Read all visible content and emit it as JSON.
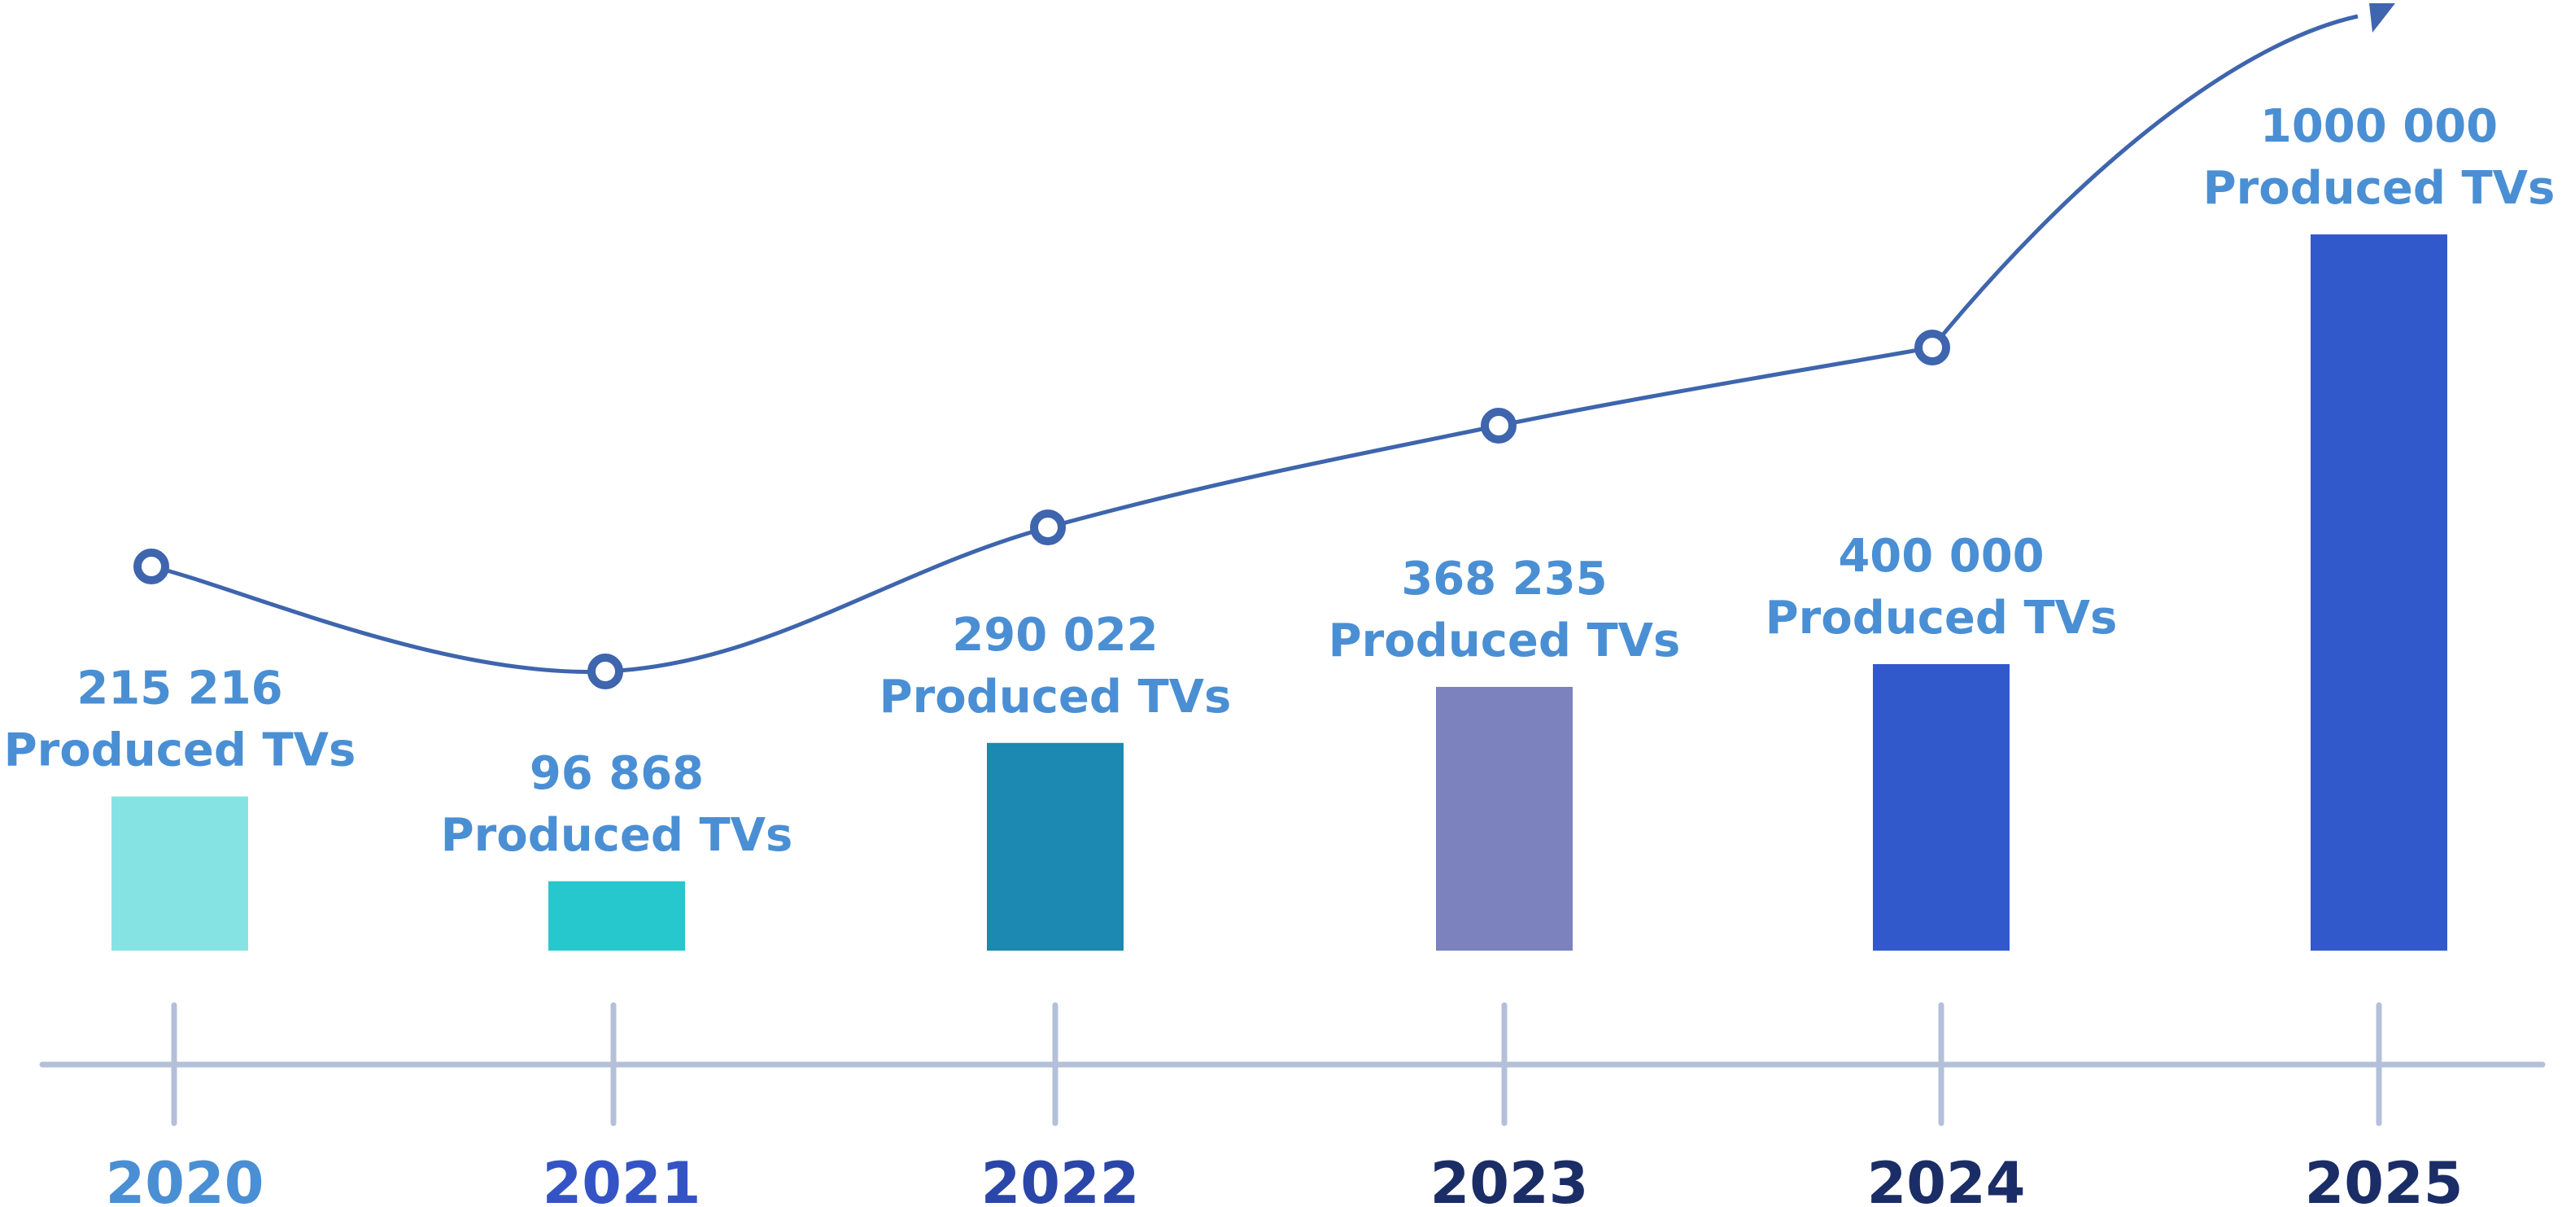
{
  "chart_data": {
    "type": "bar",
    "categories": [
      "2020",
      "2021",
      "2022",
      "2023",
      "2024",
      "2025"
    ],
    "values": [
      215216,
      96868,
      290022,
      368235,
      400000,
      1000000
    ],
    "value_labels": [
      "215 216",
      "96 868",
      "290 022",
      "368 235",
      "400 000",
      "1000 000"
    ],
    "unit_label": "Produced TVs",
    "bar_colors": [
      "#86e3e3",
      "#27c8cd",
      "#1b89b1",
      "#7b82bd",
      "#3259cc",
      "#3259cc"
    ],
    "year_label_colors": [
      "#4a8fd4",
      "#3454c6",
      "#2a46a8",
      "#1b2d66",
      "#1b2d66",
      "#1b2d66"
    ],
    "trend_line": {
      "color": "#3e65ad",
      "arrow": true
    },
    "axis_color": "#b4c0da",
    "title": "",
    "xlabel": "",
    "ylabel": "",
    "legend": "none",
    "grid": false
  }
}
